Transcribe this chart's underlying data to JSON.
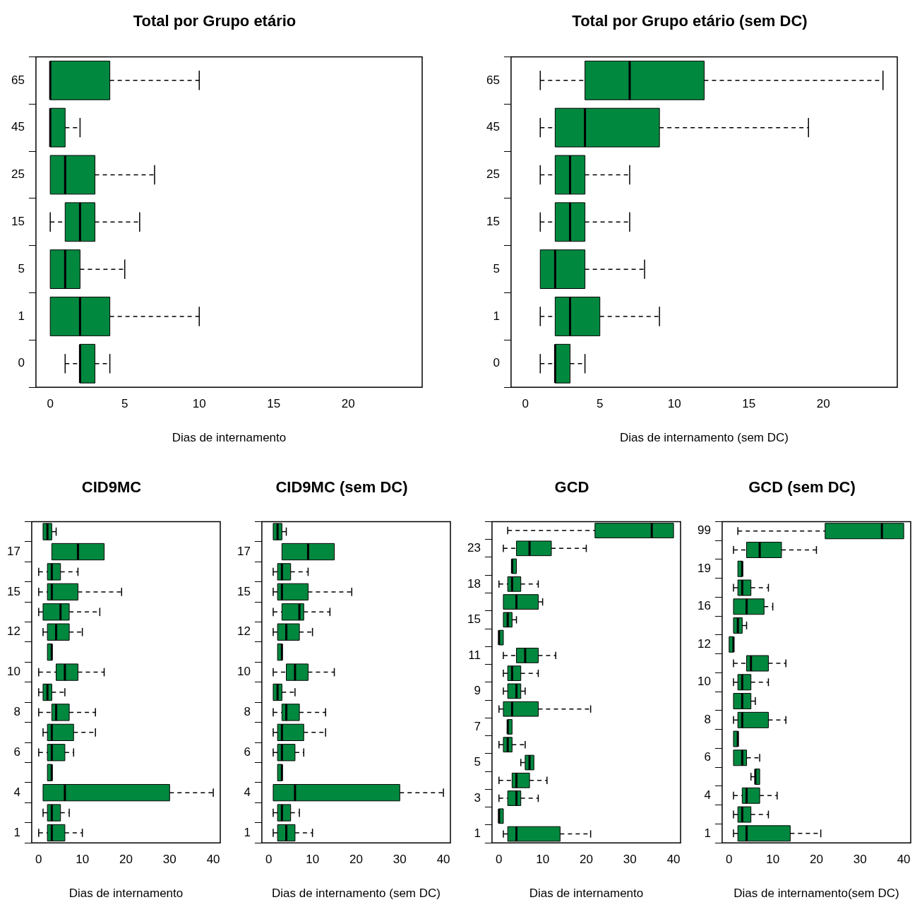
{
  "chart_data": [
    {
      "type": "box",
      "orientation": "horizontal",
      "title": "Total por Grupo etário",
      "xlabel": "Dias de internamento",
      "categories": [
        "65",
        "45",
        "25",
        "15",
        "5",
        "1",
        "0"
      ],
      "xlim": [
        -0.96,
        24.96
      ],
      "xticks": [
        0,
        5,
        10,
        15,
        20
      ],
      "series": [
        {
          "color": "#00883f",
          "boxes": [
            {
              "low": 0,
              "q1": 0,
              "median": 0,
              "q3": 4,
              "high": 10
            },
            {
              "low": 0,
              "q1": 0,
              "median": 0,
              "q3": 1,
              "high": 2
            },
            {
              "low": 0,
              "q1": 0,
              "median": 1,
              "q3": 3,
              "high": 7
            },
            {
              "low": 0,
              "q1": 1,
              "median": 2,
              "q3": 3,
              "high": 6
            },
            {
              "low": 0,
              "q1": 0,
              "median": 1,
              "q3": 2,
              "high": 5
            },
            {
              "low": 0,
              "q1": 0,
              "median": 2,
              "q3": 4,
              "high": 10
            },
            {
              "low": 1,
              "q1": 2,
              "median": 2,
              "q3": 3,
              "high": 4
            }
          ]
        }
      ]
    },
    {
      "type": "box",
      "orientation": "horizontal",
      "title": "Total por Grupo etário (sem DC)",
      "xlabel": "Dias de internamento (sem DC)",
      "categories": [
        "65",
        "45",
        "25",
        "15",
        "5",
        "1",
        "0"
      ],
      "xlim": [
        -0.96,
        24.96
      ],
      "xticks": [
        0,
        5,
        10,
        15,
        20
      ],
      "series": [
        {
          "color": "#00883f",
          "boxes": [
            {
              "low": 1,
              "q1": 4,
              "median": 7,
              "q3": 12,
              "high": 24
            },
            {
              "low": 1,
              "q1": 2,
              "median": 4,
              "q3": 9,
              "high": 19
            },
            {
              "low": 1,
              "q1": 2,
              "median": 3,
              "q3": 4,
              "high": 7
            },
            {
              "low": 1,
              "q1": 2,
              "median": 3,
              "q3": 4,
              "high": 7
            },
            {
              "low": 1,
              "q1": 1,
              "median": 2,
              "q3": 4,
              "high": 8
            },
            {
              "low": 1,
              "q1": 2,
              "median": 3,
              "q3": 5,
              "high": 9
            },
            {
              "low": 1,
              "q1": 2,
              "median": 2,
              "q3": 3,
              "high": 4
            }
          ]
        }
      ]
    },
    {
      "type": "box",
      "orientation": "horizontal",
      "title": "CID9MC",
      "xlabel": "Dias de internamento",
      "categories": [
        null,
        "17",
        null,
        "15",
        null,
        "12",
        null,
        "10",
        null,
        "8",
        null,
        "6",
        null,
        "4",
        null,
        "1"
      ],
      "xlim": [
        -1.6,
        41.6
      ],
      "xticks": [
        0,
        10,
        20,
        30,
        40
      ],
      "series": [
        {
          "color": "#00883f",
          "boxes": [
            {
              "low": 1,
              "q1": 1,
              "median": 2,
              "q3": 3,
              "high": 4
            },
            {
              "low": 3,
              "q1": 3,
              "median": 9,
              "q3": 15,
              "high": 15
            },
            {
              "low": 0,
              "q1": 2,
              "median": 3,
              "q3": 5,
              "high": 9
            },
            {
              "low": 0,
              "q1": 2,
              "median": 3,
              "q3": 9,
              "high": 19
            },
            {
              "low": 0,
              "q1": 1,
              "median": 5,
              "q3": 7,
              "high": 14
            },
            {
              "low": 1,
              "q1": 2,
              "median": 4,
              "q3": 7,
              "high": 10
            },
            {
              "low": 2,
              "q1": 2,
              "median": 3,
              "q3": 3,
              "high": 3
            },
            {
              "low": 0,
              "q1": 4,
              "median": 6,
              "q3": 9,
              "high": 15
            },
            {
              "low": 0,
              "q1": 1,
              "median": 2,
              "q3": 3,
              "high": 6
            },
            {
              "low": 0,
              "q1": 3,
              "median": 4,
              "q3": 7,
              "high": 13
            },
            {
              "low": 1,
              "q1": 2,
              "median": 3,
              "q3": 8,
              "high": 13
            },
            {
              "low": 0,
              "q1": 2,
              "median": 3,
              "q3": 6,
              "high": 8
            },
            {
              "low": 2,
              "q1": 2,
              "median": 3,
              "q3": 3,
              "high": 3
            },
            {
              "low": 1,
              "q1": 1,
              "median": 6,
              "q3": 30,
              "high": 40
            },
            {
              "low": 1,
              "q1": 2,
              "median": 3,
              "q3": 5,
              "high": 7
            },
            {
              "low": 0,
              "q1": 2,
              "median": 3,
              "q3": 6,
              "high": 10
            }
          ]
        }
      ]
    },
    {
      "type": "box",
      "orientation": "horizontal",
      "title": "CID9MC (sem DC)",
      "xlabel": "Dias de internamento (sem DC)",
      "categories": [
        null,
        "17",
        null,
        "15",
        null,
        "12",
        null,
        "10",
        null,
        "8",
        null,
        "6",
        null,
        "4",
        null,
        "1"
      ],
      "xlim": [
        -1.6,
        41.6
      ],
      "xticks": [
        0,
        10,
        20,
        30,
        40
      ],
      "series": [
        {
          "color": "#00883f",
          "boxes": [
            {
              "low": 1,
              "q1": 1,
              "median": 2,
              "q3": 3,
              "high": 4
            },
            {
              "low": 3,
              "q1": 3,
              "median": 9,
              "q3": 15,
              "high": 15
            },
            {
              "low": 1,
              "q1": 2,
              "median": 3,
              "q3": 5,
              "high": 9
            },
            {
              "low": 1,
              "q1": 2,
              "median": 3,
              "q3": 9,
              "high": 19
            },
            {
              "low": 1,
              "q1": 3,
              "median": 7,
              "q3": 8,
              "high": 14
            },
            {
              "low": 1,
              "q1": 2,
              "median": 4,
              "q3": 7,
              "high": 10
            },
            {
              "low": 2,
              "q1": 2,
              "median": 3,
              "q3": 3,
              "high": 3
            },
            {
              "low": 1,
              "q1": 4,
              "median": 6,
              "q3": 9,
              "high": 15
            },
            {
              "low": 1,
              "q1": 1,
              "median": 2,
              "q3": 3,
              "high": 6
            },
            {
              "low": 1,
              "q1": 3,
              "median": 4,
              "q3": 7,
              "high": 13
            },
            {
              "low": 1,
              "q1": 2,
              "median": 3,
              "q3": 8,
              "high": 13
            },
            {
              "low": 1,
              "q1": 2,
              "median": 3,
              "q3": 6,
              "high": 8
            },
            {
              "low": 2,
              "q1": 2,
              "median": 3,
              "q3": 3,
              "high": 3
            },
            {
              "low": 1,
              "q1": 1,
              "median": 6,
              "q3": 30,
              "high": 40
            },
            {
              "low": 1,
              "q1": 2,
              "median": 3,
              "q3": 5,
              "high": 7
            },
            {
              "low": 1,
              "q1": 2,
              "median": 4,
              "q3": 6,
              "high": 10
            }
          ]
        }
      ]
    },
    {
      "type": "box",
      "orientation": "horizontal",
      "title": "GCD",
      "xlabel": "Dias de internamento",
      "categories": [
        null,
        "23",
        null,
        "18",
        null,
        "15",
        null,
        "11",
        null,
        "9",
        null,
        "7",
        null,
        "5",
        null,
        "3",
        null,
        "1"
      ],
      "xlim": [
        -1.6,
        41.6
      ],
      "xticks": [
        0,
        10,
        20,
        30,
        40
      ],
      "series": [
        {
          "color": "#00883f",
          "boxes": [
            {
              "low": 2,
              "q1": 22,
              "median": 35,
              "q3": 40,
              "high": 40
            },
            {
              "low": 1,
              "q1": 4,
              "median": 7,
              "q3": 12,
              "high": 20
            },
            {
              "low": 3,
              "q1": 3,
              "median": 3,
              "q3": 4,
              "high": 4
            },
            {
              "low": 0,
              "q1": 2,
              "median": 3,
              "q3": 5,
              "high": 9
            },
            {
              "low": 1,
              "q1": 1,
              "median": 4,
              "q3": 9,
              "high": 10
            },
            {
              "low": 1,
              "q1": 1,
              "median": 2,
              "q3": 3,
              "high": 4
            },
            {
              "low": 0,
              "q1": 0,
              "median": 0,
              "q3": 1,
              "high": 1
            },
            {
              "low": 1,
              "q1": 4,
              "median": 6,
              "q3": 9,
              "high": 13
            },
            {
              "low": 1,
              "q1": 2,
              "median": 3,
              "q3": 5,
              "high": 9
            },
            {
              "low": 1,
              "q1": 2,
              "median": 4,
              "q3": 5,
              "high": 6
            },
            {
              "low": 0,
              "q1": 1,
              "median": 3,
              "q3": 9,
              "high": 21
            },
            {
              "low": 2,
              "q1": 2,
              "median": 2,
              "q3": 3,
              "high": 3
            },
            {
              "low": 0,
              "q1": 1,
              "median": 2,
              "q3": 3,
              "high": 6
            },
            {
              "low": 5,
              "q1": 6,
              "median": 7,
              "q3": 8,
              "high": 8
            },
            {
              "low": 0,
              "q1": 3,
              "median": 4,
              "q3": 7,
              "high": 11
            },
            {
              "low": 0,
              "q1": 2,
              "median": 4,
              "q3": 5,
              "high": 9
            },
            {
              "low": 0,
              "q1": 0,
              "median": 0,
              "q3": 1,
              "high": 1
            },
            {
              "low": 1,
              "q1": 2,
              "median": 4,
              "q3": 14,
              "high": 21
            }
          ]
        }
      ]
    },
    {
      "type": "box",
      "orientation": "horizontal",
      "title": "GCD (sem DC)",
      "xlabel": "Dias de internamento(sem DC)",
      "categories": [
        "99",
        null,
        "19",
        null,
        "16",
        null,
        "12",
        null,
        "10",
        null,
        "8",
        null,
        "6",
        null,
        "4",
        null,
        "1"
      ],
      "xlim": [
        -1.6,
        41.6
      ],
      "xticks": [
        0,
        10,
        20,
        30,
        40
      ],
      "series": [
        {
          "color": "#00883f",
          "boxes": [
            {
              "low": 2,
              "q1": 22,
              "median": 35,
              "q3": 40,
              "high": 40
            },
            {
              "low": 1,
              "q1": 4,
              "median": 7,
              "q3": 12,
              "high": 20
            },
            {
              "low": 2,
              "q1": 2,
              "median": 3,
              "q3": 3,
              "high": 3
            },
            {
              "low": 1,
              "q1": 2,
              "median": 3,
              "q3": 5,
              "high": 9
            },
            {
              "low": 1,
              "q1": 1,
              "median": 4,
              "q3": 8,
              "high": 10
            },
            {
              "low": 1,
              "q1": 1,
              "median": 2,
              "q3": 3,
              "high": 4
            },
            {
              "low": 0,
              "q1": 0,
              "median": 1,
              "q3": 1,
              "high": 1
            },
            {
              "low": 1,
              "q1": 4,
              "median": 5,
              "q3": 9,
              "high": 13
            },
            {
              "low": 1,
              "q1": 2,
              "median": 3,
              "q3": 5,
              "high": 9
            },
            {
              "low": 1,
              "q1": 1,
              "median": 3,
              "q3": 5,
              "high": 6
            },
            {
              "low": 1,
              "q1": 2,
              "median": 3,
              "q3": 9,
              "high": 13
            },
            {
              "low": 1,
              "q1": 1,
              "median": 2,
              "q3": 2,
              "high": 2
            },
            {
              "low": 1,
              "q1": 1,
              "median": 3,
              "q3": 4,
              "high": 7
            },
            {
              "low": 5,
              "q1": 6,
              "median": 6,
              "q3": 7,
              "high": 7
            },
            {
              "low": 1,
              "q1": 3,
              "median": 4,
              "q3": 7,
              "high": 11
            },
            {
              "low": 1,
              "q1": 2,
              "median": 3,
              "q3": 5,
              "high": 9
            },
            {
              "low": 1,
              "q1": 2,
              "median": 4,
              "q3": 14,
              "high": 21
            }
          ]
        }
      ]
    }
  ]
}
